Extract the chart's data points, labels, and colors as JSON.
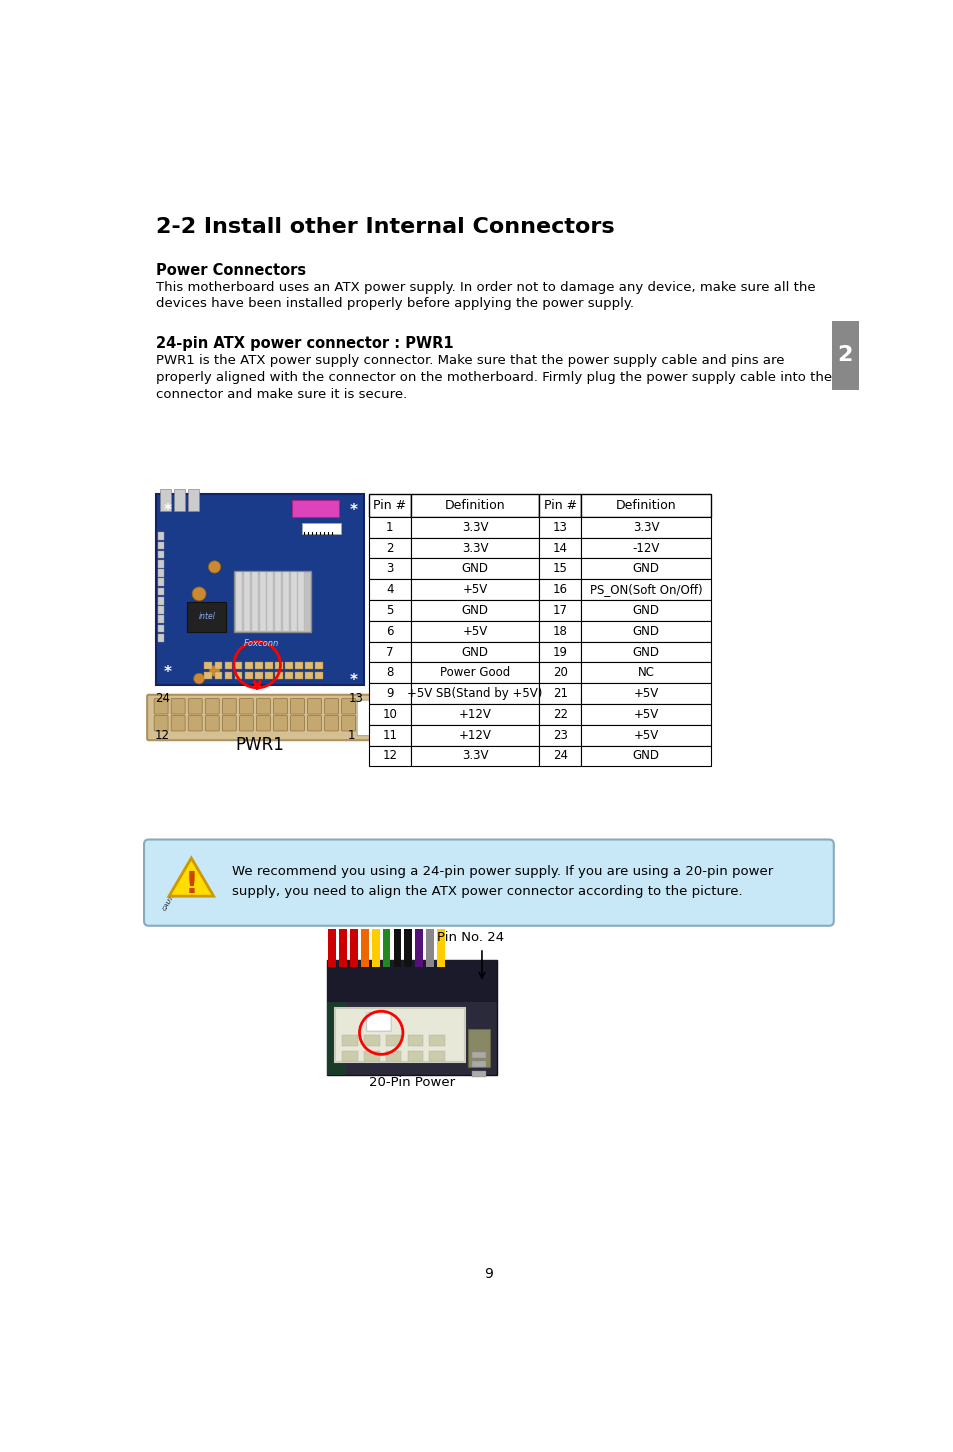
{
  "title": "2-2 Install other Internal Connectors",
  "section1_title": "Power Connectors",
  "section1_text1": "This motherboard uses an ATX power supply. In order not to damage any device, make sure all the",
  "section1_text2": "devices have been installed properly before applying the power supply.",
  "section2_title": "24-pin ATX power connector : PWR1",
  "section2_text1": "PWR1 is the ATX power supply connector. Make sure that the power supply cable and pins are",
  "section2_text2": "properly aligned with the connector on the motherboard. Firmly plug the power supply cable into the",
  "section2_text3": "connector and make sure it is secure.",
  "table_headers": [
    "Pin #",
    "Definition",
    "Pin #",
    "Definition"
  ],
  "table_data": [
    [
      "1",
      "3.3V",
      "13",
      "3.3V"
    ],
    [
      "2",
      "3.3V",
      "14",
      "-12V"
    ],
    [
      "3",
      "GND",
      "15",
      "GND"
    ],
    [
      "4",
      "+5V",
      "16",
      "PS_ON(Soft On/Off)"
    ],
    [
      "5",
      "GND",
      "17",
      "GND"
    ],
    [
      "6",
      "+5V",
      "18",
      "GND"
    ],
    [
      "7",
      "GND",
      "19",
      "GND"
    ],
    [
      "8",
      "Power Good",
      "20",
      "NC"
    ],
    [
      "9",
      "+5V SB(Stand by +5V)",
      "21",
      "+5V"
    ],
    [
      "10",
      "+12V",
      "22",
      "+5V"
    ],
    [
      "11",
      "+12V",
      "23",
      "+5V"
    ],
    [
      "12",
      "3.3V",
      "24",
      "GND"
    ]
  ],
  "caution_text": "We recommend you using a 24-pin power supply. If you are using a 20-pin power\nsupply, you need to align the ATX power connector according to the picture.",
  "pin_no_label": "Pin No. 24",
  "bottom_label": "20-Pin Power",
  "pwr1_label": "PWR1",
  "label_24": "24",
  "label_13": "13",
  "label_12": "12",
  "label_1": "1",
  "page_number": "9",
  "tab_label": "2",
  "bg_color": "#ffffff",
  "text_color": "#000000",
  "tab_color": "#888888",
  "caution_box_color": "#c8e8f8",
  "caution_border_color": "#88aabb"
}
